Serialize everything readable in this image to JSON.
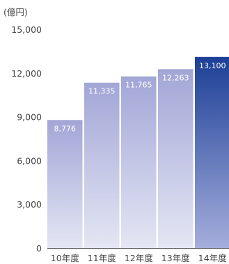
{
  "chart_data": {
    "type": "bar",
    "unit_label": "(億円)",
    "categories": [
      "10年度",
      "11年度",
      "12年度",
      "13年度",
      "14年度"
    ],
    "values": [
      8776,
      11335,
      11765,
      12263,
      13100
    ],
    "value_labels": [
      "8,776",
      "11,335",
      "11,765",
      "12,263",
      "13,100"
    ],
    "y_ticks": [
      "0",
      "3,000",
      "6,000",
      "9,000",
      "12,000",
      "15,000"
    ],
    "ylim": [
      0,
      15000
    ],
    "grid": false,
    "colors": {
      "bar_top": "#a2a6d6",
      "bar_bottom": "#e4e6f4",
      "highlight_top": "#1c3f96",
      "highlight_bottom": "#a5aedc",
      "axis_line": "#555555"
    },
    "highlight_index": 4
  }
}
